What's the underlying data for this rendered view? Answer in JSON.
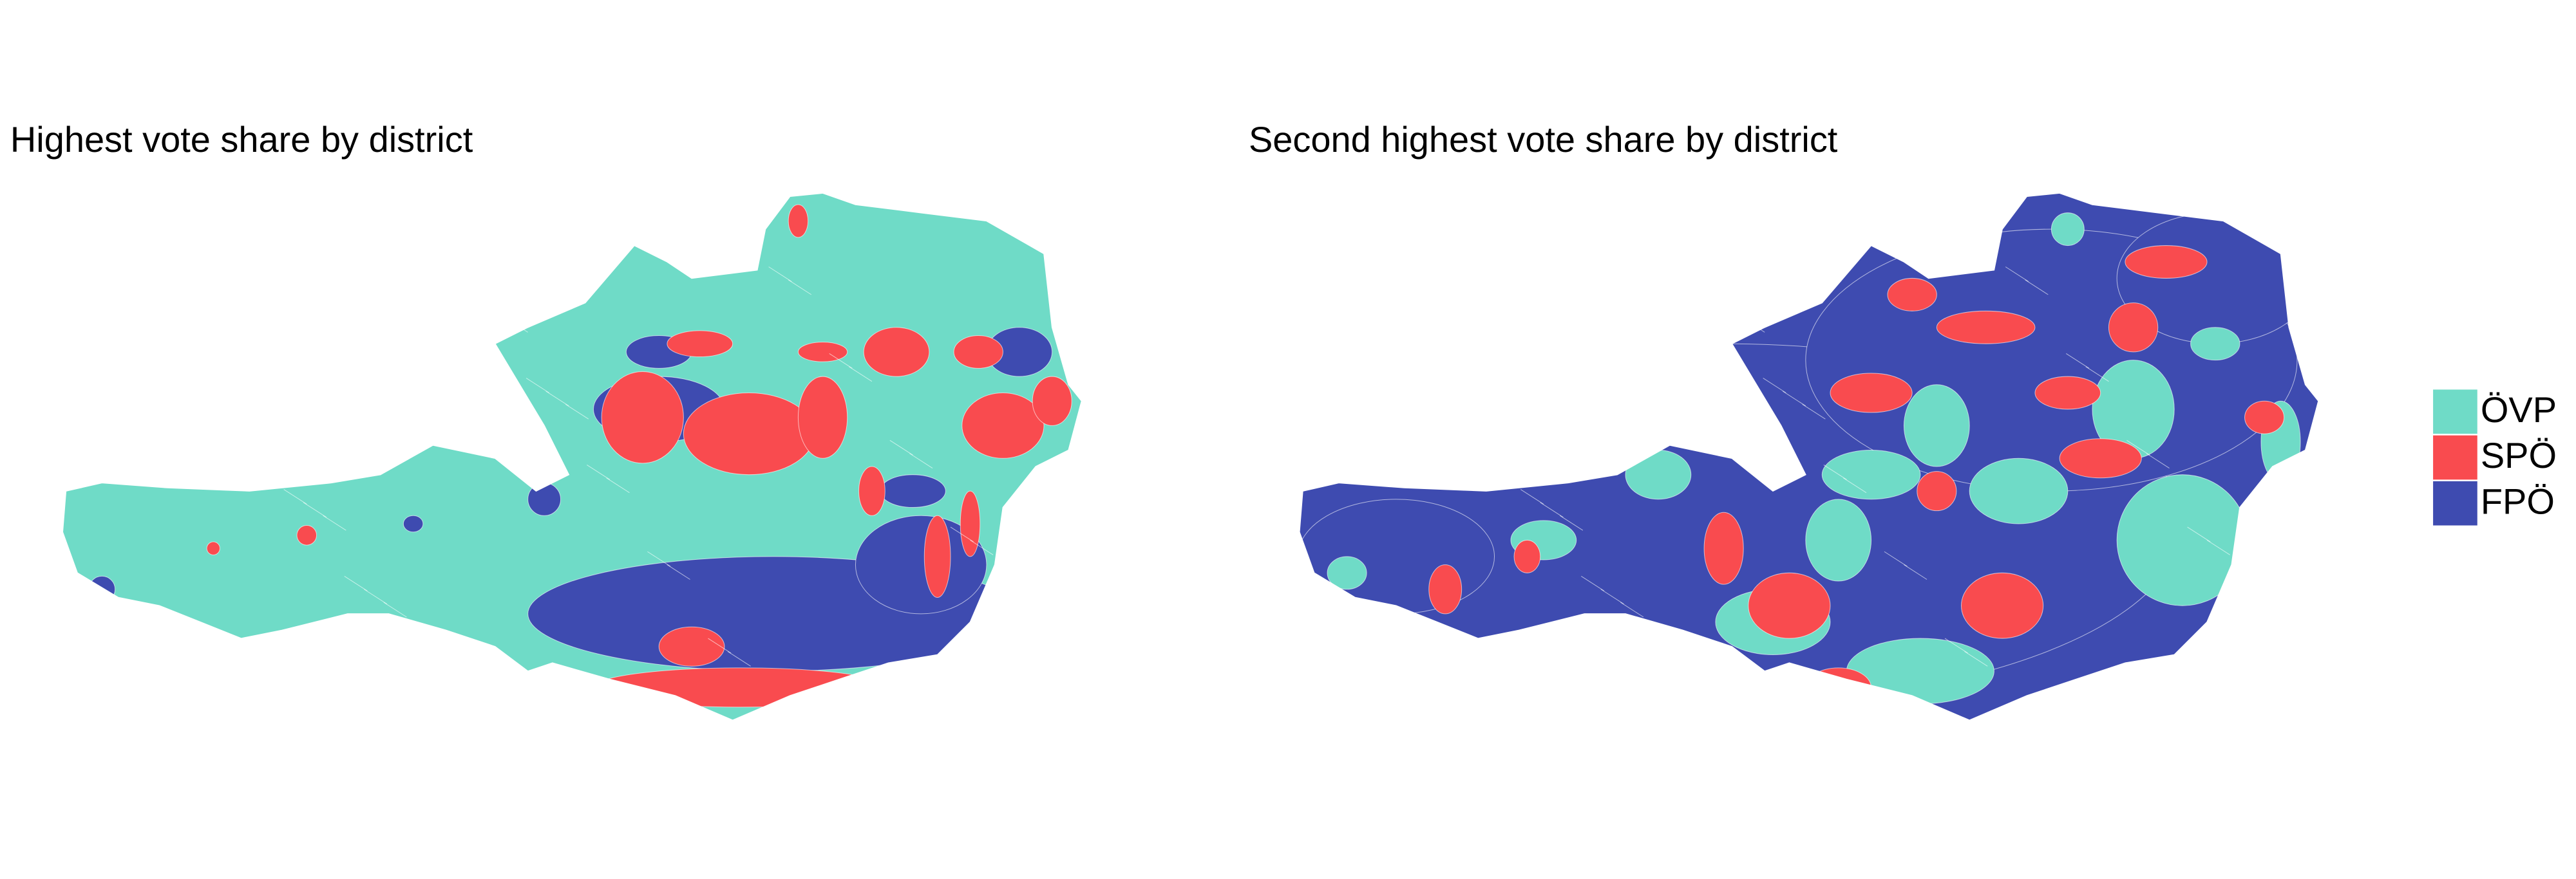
{
  "maps": [
    {
      "title": "Highest vote share by district"
    },
    {
      "title": "Second highest vote share by district"
    }
  ],
  "legend": [
    {
      "label": "ÖVP",
      "color": "#6fdbc7"
    },
    {
      "label": "SPÖ",
      "color": "#f94b4f"
    },
    {
      "label": "FPÖ",
      "color": "#3e4bb0"
    }
  ]
}
